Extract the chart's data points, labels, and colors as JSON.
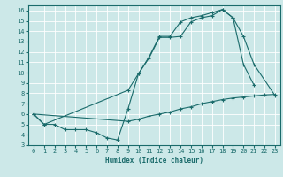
{
  "xlabel": "Humidex (Indice chaleur)",
  "bg_color": "#cce8e8",
  "line_color": "#1a6b6b",
  "xlim": [
    -0.5,
    23.5
  ],
  "ylim": [
    3,
    16.5
  ],
  "xticks": [
    0,
    1,
    2,
    3,
    4,
    5,
    6,
    7,
    8,
    9,
    10,
    11,
    12,
    13,
    14,
    15,
    16,
    17,
    18,
    19,
    20,
    21,
    22,
    23
  ],
  "yticks": [
    3,
    4,
    5,
    6,
    7,
    8,
    9,
    10,
    11,
    12,
    13,
    14,
    15,
    16
  ],
  "curve1_x": [
    0,
    1,
    2,
    3,
    4,
    5,
    6,
    7,
    8,
    9,
    10,
    11,
    12,
    13,
    14,
    15,
    16,
    17,
    18,
    19,
    20,
    21
  ],
  "curve1_y": [
    6,
    5,
    5,
    4.5,
    4.5,
    4.5,
    4.2,
    3.7,
    3.5,
    6.5,
    9.9,
    11.5,
    13.5,
    13.5,
    14.9,
    15.3,
    15.5,
    15.8,
    16.1,
    15.3,
    10.8,
    8.8
  ],
  "curve2_x": [
    0,
    1,
    9,
    10,
    11,
    12,
    13,
    14,
    15,
    16,
    17,
    18,
    19,
    20,
    21,
    23
  ],
  "curve2_y": [
    6,
    5,
    8.3,
    9.9,
    11.4,
    13.4,
    13.4,
    13.5,
    14.9,
    15.3,
    15.5,
    16.1,
    15.3,
    13.5,
    10.8,
    7.8
  ],
  "curve3_x": [
    0,
    9,
    10,
    11,
    12,
    13,
    14,
    15,
    16,
    17,
    18,
    19,
    20,
    21,
    22,
    23
  ],
  "curve3_y": [
    6,
    5.3,
    5.5,
    5.8,
    6.0,
    6.2,
    6.5,
    6.7,
    7.0,
    7.2,
    7.4,
    7.55,
    7.65,
    7.75,
    7.85,
    7.9
  ]
}
